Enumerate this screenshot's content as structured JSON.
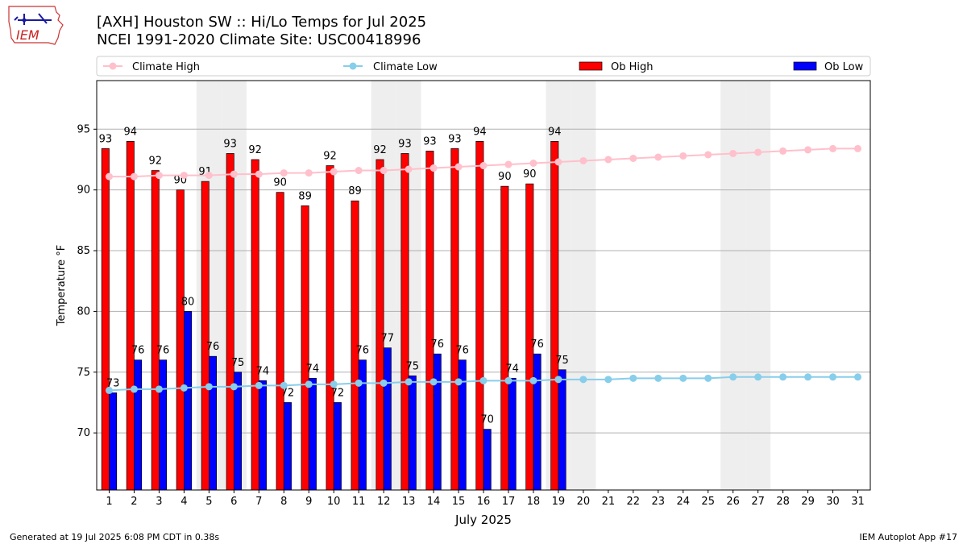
{
  "header": {
    "title_line1": "[AXH] Houston SW :: Hi/Lo Temps for Jul 2025",
    "title_line2": "NCEI 1991-2020 Climate Site: USC00418996",
    "logo_text": "IEM"
  },
  "footer": {
    "generated": "Generated at 19 Jul 2025 6:08 PM CDT in 0.38s",
    "app": "IEM Autoplot App #17"
  },
  "colors": {
    "ob_high": "#ff0000",
    "ob_low": "#0000ff",
    "climate_high": "#ffc0cb",
    "climate_low": "#87ceeb",
    "weekend_shade": "#eeeeee",
    "grid": "#b0b0b0"
  },
  "chart_data": {
    "type": "bar",
    "xlabel": "July 2025",
    "ylabel": "Temperature °F",
    "ylim": [
      65.3,
      99
    ],
    "yticks": [
      70,
      75,
      80,
      85,
      90,
      95
    ],
    "xlim": [
      0.5,
      31.5
    ],
    "grid": "horizontal",
    "legend_position": "top",
    "weekend_days": [
      5,
      6,
      12,
      13,
      19,
      20,
      26,
      27
    ],
    "days": [
      1,
      2,
      3,
      4,
      5,
      6,
      7,
      8,
      9,
      10,
      11,
      12,
      13,
      14,
      15,
      16,
      17,
      18,
      19,
      20,
      21,
      22,
      23,
      24,
      25,
      26,
      27,
      28,
      29,
      30,
      31
    ],
    "legend": [
      "Climate High",
      "Climate Low",
      "Ob High",
      "Ob Low"
    ],
    "series": [
      {
        "name": "Ob High",
        "kind": "bar",
        "values": [
          93.4,
          94.0,
          91.6,
          90.0,
          90.7,
          93.0,
          92.5,
          89.8,
          88.7,
          92.0,
          89.1,
          92.5,
          93.0,
          93.2,
          93.4,
          94.0,
          90.3,
          90.5,
          94.0
        ],
        "labels": [
          "93",
          "94",
          "92",
          "90",
          "91",
          "93",
          "92",
          "90",
          "89",
          "92",
          "89",
          "92",
          "93",
          "93",
          "93",
          "94",
          "90",
          "90",
          "94"
        ]
      },
      {
        "name": "Ob Low",
        "kind": "bar",
        "values": [
          73.3,
          76.0,
          76.0,
          80.0,
          76.3,
          75.0,
          74.3,
          72.5,
          74.5,
          72.5,
          76.0,
          77.0,
          74.7,
          76.5,
          76.0,
          70.3,
          74.5,
          76.5,
          75.2
        ],
        "labels": [
          "73",
          "76",
          "76",
          "80",
          "76",
          "75",
          "74",
          "72",
          "74",
          "72",
          "76",
          "77",
          "75",
          "76",
          "76",
          "70",
          "74",
          "76",
          "75"
        ]
      },
      {
        "name": "Climate High",
        "kind": "line",
        "values": [
          91.1,
          91.1,
          91.2,
          91.2,
          91.2,
          91.3,
          91.3,
          91.4,
          91.4,
          91.5,
          91.6,
          91.6,
          91.7,
          91.8,
          91.9,
          92.0,
          92.1,
          92.2,
          92.3,
          92.4,
          92.5,
          92.6,
          92.7,
          92.8,
          92.9,
          93.0,
          93.1,
          93.2,
          93.3,
          93.4,
          93.4
        ]
      },
      {
        "name": "Climate Low",
        "kind": "line",
        "values": [
          73.5,
          73.6,
          73.6,
          73.7,
          73.8,
          73.8,
          73.9,
          73.9,
          74.0,
          74.0,
          74.1,
          74.1,
          74.2,
          74.2,
          74.2,
          74.3,
          74.3,
          74.3,
          74.4,
          74.4,
          74.4,
          74.5,
          74.5,
          74.5,
          74.5,
          74.6,
          74.6,
          74.6,
          74.6,
          74.6,
          74.6
        ]
      }
    ]
  }
}
